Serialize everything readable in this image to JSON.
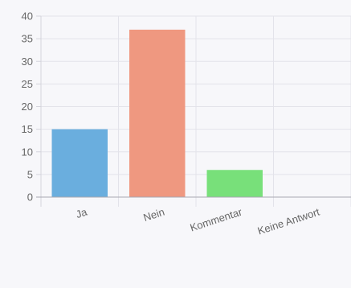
{
  "chart_data": {
    "type": "bar",
    "categories": [
      "Ja",
      "Nein",
      "Kommentar",
      "Keine Antwort"
    ],
    "values": [
      15,
      37,
      6,
      0
    ],
    "colors": [
      "#6aaede",
      "#ef9880",
      "#78e07a",
      "#b0b0b0"
    ],
    "ylim": [
      0,
      40
    ],
    "yticks": [
      0,
      5,
      10,
      15,
      20,
      25,
      30,
      35,
      40
    ],
    "grid": true,
    "legend": "none",
    "title": "",
    "xlabel": "",
    "ylabel": ""
  }
}
